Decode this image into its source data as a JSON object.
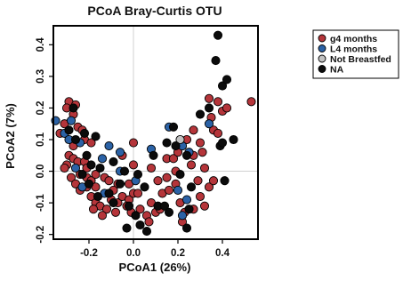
{
  "chart_data": {
    "type": "scatter",
    "title": "PCoA Bray-Curtis OTU",
    "xlabel": "PCoA1 (26%)",
    "ylabel": "PCoA2 (7%)",
    "xlim": [
      -0.36,
      0.56
    ],
    "ylim": [
      -0.215,
      0.46
    ],
    "x_ticks": [
      -0.2,
      0.0,
      0.2,
      0.4
    ],
    "y_ticks": [
      -0.2,
      -0.1,
      0.0,
      0.1,
      0.2,
      0.3,
      0.4
    ],
    "x_tick_labels": [
      "-0.2",
      "0.0",
      "0.2",
      "0.4"
    ],
    "y_tick_labels": [
      "-0.2",
      "-0.1",
      "0.0",
      "0.1",
      "0.2",
      "0.3",
      "0.4"
    ],
    "reference_lines": {
      "x": 0,
      "y": 0
    },
    "legend_position": "top-right",
    "series": [
      {
        "name": "g4 months",
        "color": "#b5353a",
        "points": [
          [
            -0.29,
            0.22
          ],
          [
            -0.3,
            0.2
          ],
          [
            -0.26,
            0.21
          ],
          [
            -0.27,
            0.18
          ],
          [
            -0.31,
            0.15
          ],
          [
            -0.33,
            0.12
          ],
          [
            -0.25,
            0.14
          ],
          [
            -0.23,
            0.13
          ],
          [
            -0.22,
            0.1
          ],
          [
            -0.19,
            0.09
          ],
          [
            -0.27,
            0.08
          ],
          [
            -0.29,
            0.05
          ],
          [
            -0.27,
            0.04
          ],
          [
            -0.25,
            0.03
          ],
          [
            -0.22,
            0.03
          ],
          [
            -0.21,
            0.01
          ],
          [
            -0.3,
            0.02
          ],
          [
            -0.31,
            0.01
          ],
          [
            -0.28,
            -0.02
          ],
          [
            -0.24,
            -0.01
          ],
          [
            -0.21,
            -0.02
          ],
          [
            -0.19,
            -0.03
          ],
          [
            -0.17,
            -0.01
          ],
          [
            -0.26,
            -0.04
          ],
          [
            -0.24,
            -0.06
          ],
          [
            -0.21,
            -0.05
          ],
          [
            -0.17,
            -0.05
          ],
          [
            -0.13,
            -0.02
          ],
          [
            -0.11,
            -0.03
          ],
          [
            -0.19,
            -0.08
          ],
          [
            -0.17,
            -0.1
          ],
          [
            -0.15,
            -0.11
          ],
          [
            -0.12,
            -0.12
          ],
          [
            -0.18,
            -0.12
          ],
          [
            -0.14,
            -0.14
          ],
          [
            -0.1,
            -0.09
          ],
          [
            -0.07,
            -0.1
          ],
          [
            -0.05,
            -0.08
          ],
          [
            -0.02,
            -0.09
          ],
          [
            0.0,
            -0.07
          ],
          [
            0.02,
            -0.07
          ],
          [
            -0.03,
            -0.11
          ],
          [
            -0.01,
            -0.13
          ],
          [
            0.03,
            -0.12
          ],
          [
            0.06,
            -0.14
          ],
          [
            0.08,
            -0.1
          ],
          [
            0.1,
            -0.13
          ],
          [
            0.12,
            -0.12
          ],
          [
            0.13,
            -0.07
          ],
          [
            0.16,
            -0.06
          ],
          [
            0.19,
            -0.04
          ],
          [
            0.15,
            -0.02
          ],
          [
            0.11,
            -0.03
          ],
          [
            0.08,
            0.01
          ],
          [
            0.0,
            0.02
          ],
          [
            0.0,
            0.09
          ],
          [
            -0.05,
            0.05
          ],
          [
            -0.07,
            -0.04
          ],
          [
            -0.09,
            -0.06
          ],
          [
            0.15,
            0.04
          ],
          [
            0.18,
            0.04
          ],
          [
            0.2,
            0.06
          ],
          [
            0.22,
            0.08
          ],
          [
            0.24,
            0.1
          ],
          [
            0.27,
            0.13
          ],
          [
            0.3,
            0.09
          ],
          [
            0.31,
            0.06
          ],
          [
            0.27,
            0.05
          ],
          [
            0.26,
            0.02
          ],
          [
            0.29,
            -0.03
          ],
          [
            0.3,
            -0.08
          ],
          [
            0.32,
            -0.11
          ],
          [
            0.34,
            -0.05
          ],
          [
            0.36,
            -0.03
          ],
          [
            0.32,
            0.01
          ],
          [
            0.36,
            0.13
          ],
          [
            0.38,
            0.12
          ],
          [
            0.35,
            0.17
          ],
          [
            0.38,
            0.22
          ],
          [
            0.4,
            0.19
          ],
          [
            0.42,
            0.2
          ],
          [
            0.34,
            0.23
          ],
          [
            0.53,
            0.22
          ],
          [
            0.21,
            -0.1
          ],
          [
            0.23,
            -0.13
          ],
          [
            0.22,
            -0.16
          ],
          [
            0.27,
            -0.12
          ],
          [
            0.19,
            0.0
          ],
          [
            -0.02,
            -0.04
          ],
          [
            -0.08,
            -0.13
          ],
          [
            0.07,
            -0.16
          ]
        ]
      },
      {
        "name": "L4 months",
        "color": "#2b62a6",
        "points": [
          [
            -0.35,
            0.16
          ],
          [
            -0.28,
            0.16
          ],
          [
            -0.31,
            0.12
          ],
          [
            -0.29,
            0.1
          ],
          [
            -0.24,
            0.09
          ],
          [
            -0.26,
            0.01
          ],
          [
            -0.23,
            -0.05
          ],
          [
            -0.14,
            0.04
          ],
          [
            -0.11,
            0.08
          ],
          [
            -0.06,
            0.06
          ],
          [
            -0.06,
            0.0
          ],
          [
            -0.13,
            -0.07
          ],
          [
            0.01,
            -0.03
          ],
          [
            0.08,
            0.07
          ],
          [
            0.16,
            0.14
          ],
          [
            0.22,
            0.08
          ],
          [
            0.25,
            0.06
          ],
          [
            0.24,
            -0.09
          ],
          [
            0.2,
            -0.06
          ],
          [
            0.22,
            -0.14
          ],
          [
            0.34,
            0.15
          ]
        ]
      },
      {
        "name": "Not Breastfed",
        "color": "#c2c2c2",
        "points": [
          [
            0.21,
            0.1
          ]
        ]
      },
      {
        "name": "NA",
        "color": "#0b0b0b",
        "points": [
          [
            -0.27,
            0.2
          ],
          [
            -0.29,
            0.13
          ],
          [
            -0.26,
            0.1
          ],
          [
            -0.22,
            0.12
          ],
          [
            -0.17,
            0.11
          ],
          [
            -0.21,
            0.05
          ],
          [
            -0.19,
            0.02
          ],
          [
            -0.15,
            0.01
          ],
          [
            -0.23,
            -0.01
          ],
          [
            -0.2,
            -0.04
          ],
          [
            -0.16,
            -0.08
          ],
          [
            -0.11,
            -0.07
          ],
          [
            -0.09,
            -0.1
          ],
          [
            -0.06,
            -0.04
          ],
          [
            -0.02,
            -0.11
          ],
          [
            0.01,
            -0.14
          ],
          [
            0.03,
            -0.17
          ],
          [
            -0.03,
            -0.18
          ],
          [
            0.06,
            -0.19
          ],
          [
            0.11,
            -0.11
          ],
          [
            0.14,
            -0.11
          ],
          [
            0.16,
            -0.13
          ],
          [
            0.09,
            0.05
          ],
          [
            0.15,
            0.09
          ],
          [
            0.18,
            0.14
          ],
          [
            0.19,
            0.08
          ],
          [
            0.24,
            0.05
          ],
          [
            0.24,
            -0.18
          ],
          [
            0.25,
            -0.12
          ],
          [
            0.3,
            0.18
          ],
          [
            0.34,
            0.2
          ],
          [
            0.37,
            0.35
          ],
          [
            0.4,
            0.27
          ],
          [
            0.42,
            0.29
          ],
          [
            0.38,
            0.43
          ],
          [
            0.39,
            0.08
          ],
          [
            0.4,
            0.09
          ],
          [
            0.45,
            0.1
          ],
          [
            0.41,
            -0.03
          ],
          [
            -0.09,
            0.03
          ],
          [
            0.02,
            -0.01
          ],
          [
            -0.04,
            0.0
          ],
          [
            0.05,
            -0.05
          ],
          [
            0.21,
            -0.01
          ],
          [
            0.26,
            -0.05
          ]
        ]
      }
    ]
  }
}
